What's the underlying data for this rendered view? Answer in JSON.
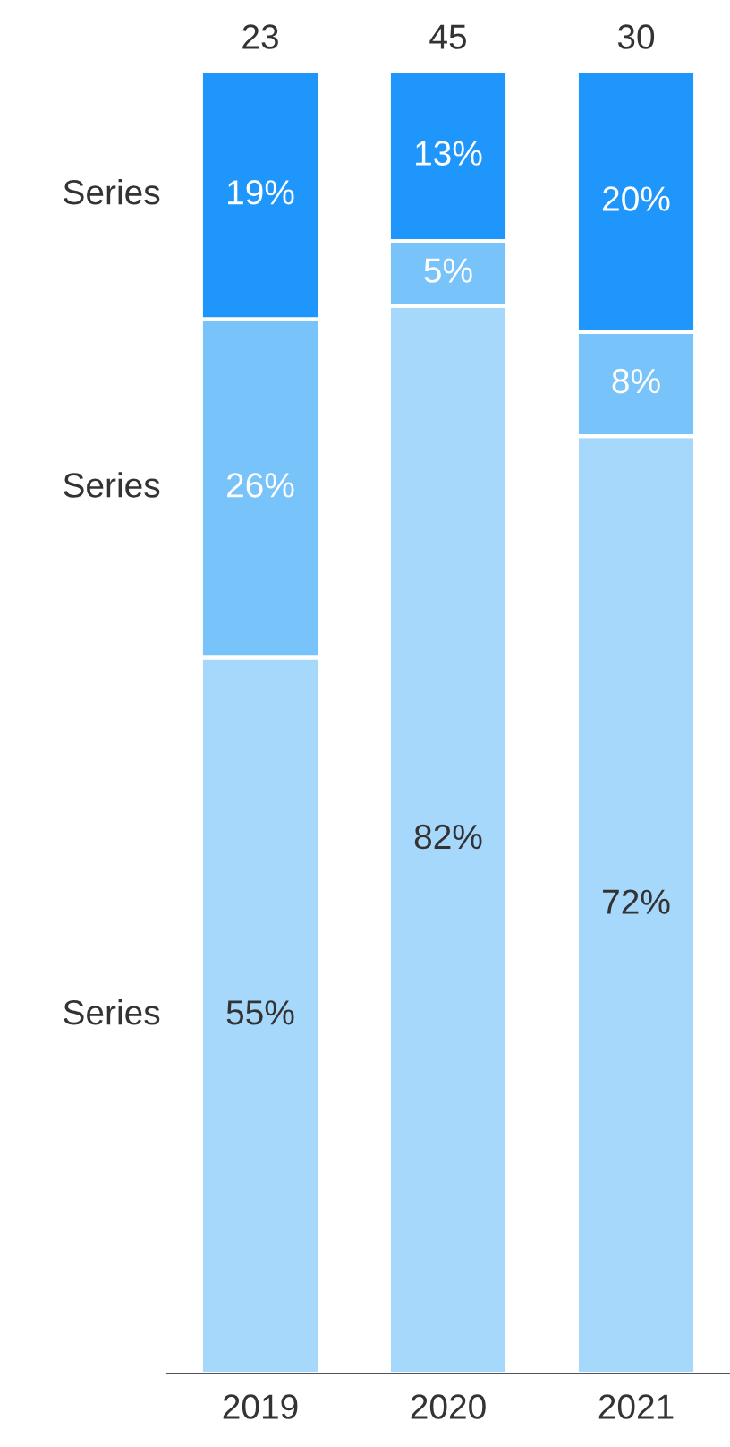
{
  "chart_data": {
    "type": "bar",
    "stacked": true,
    "categories": [
      "2019",
      "2020",
      "2021"
    ],
    "series": [
      {
        "name": "Series",
        "color": "#a6d8fb",
        "values": [
          55,
          82,
          72
        ],
        "value_labels": [
          "55%",
          "82%",
          "72%"
        ]
      },
      {
        "name": "Series",
        "color": "#79c3fb",
        "values": [
          26,
          5,
          8
        ],
        "value_labels": [
          "26%",
          "5%",
          "8%"
        ]
      },
      {
        "name": "Series",
        "color": "#1e96fb",
        "values": [
          19,
          13,
          20
        ],
        "value_labels": [
          "19%",
          "13%",
          "20%"
        ]
      }
    ],
    "annotations": [
      {
        "text": "23",
        "x": "2019",
        "y": 100
      },
      {
        "text": "45",
        "x": "2020",
        "y": 100
      },
      {
        "text": "30",
        "x": "2021",
        "y": 100
      }
    ],
    "grid": false,
    "legend": false
  }
}
